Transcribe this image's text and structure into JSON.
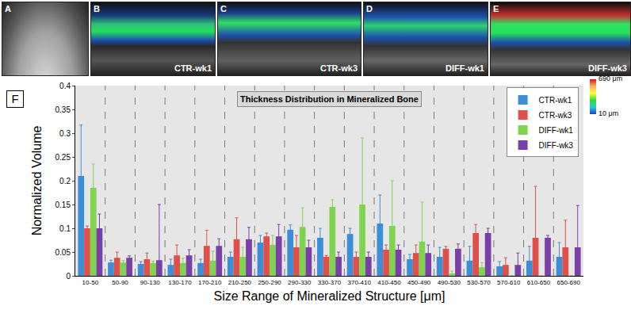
{
  "chart_data": {
    "type": "bar",
    "title": "Thickness Distribution in Mineralized Bone",
    "x_label": "Size Range of Mineralized Structure [μm]",
    "y_label": "Normalized Volume",
    "categories": [
      "10-50",
      "50-90",
      "90-130",
      "130-170",
      "170-210",
      "210-250",
      "250-290",
      "290-330",
      "330-370",
      "370-410",
      "410-450",
      "450-490",
      "490-530",
      "530-570",
      "570-610",
      "610-650",
      "650-690"
    ],
    "series": [
      {
        "name": "CTR-wk1",
        "color": "#3a8fd6",
        "values": [
          0.21,
          0.028,
          0.025,
          0.023,
          0.027,
          0.04,
          0.07,
          0.097,
          0.08,
          0.088,
          0.11,
          0.035,
          0.04,
          0.032,
          0.02,
          0.032,
          0.04
        ],
        "errors": [
          0.107,
          0.005,
          0.005,
          0.012,
          0.008,
          0.01,
          0.015,
          0.01,
          0.02,
          0.012,
          0.06,
          0.01,
          0.02,
          0.03,
          0.01,
          0.03,
          0.03
        ]
      },
      {
        "name": "CTR-wk3",
        "color": "#e0504a",
        "values": [
          0.1,
          0.038,
          0.035,
          0.043,
          0.063,
          0.077,
          0.083,
          0.06,
          0.04,
          0.04,
          0.055,
          0.048,
          0.057,
          0.09,
          0.023,
          0.08,
          0.06
        ],
        "errors": [
          0.005,
          0.012,
          0.013,
          0.022,
          0.033,
          0.045,
          0.007,
          0.025,
          0.003,
          0.01,
          0.01,
          0.017,
          0.005,
          0.018,
          0.015,
          0.108,
          0.057
        ]
      },
      {
        "name": "DIFF-wk1",
        "color": "#7fd44f",
        "values": [
          0.185,
          0.028,
          0.027,
          0.027,
          0.032,
          0.04,
          0.065,
          0.103,
          0.145,
          0.15,
          0.105,
          0.072,
          0.005,
          0.018,
          0.0,
          0.0,
          0.0
        ],
        "errors": [
          0.05,
          0.004,
          0.004,
          0.01,
          0.02,
          0.02,
          0.02,
          0.04,
          0.015,
          0.14,
          0.095,
          0.083,
          0.005,
          0.01,
          0.0,
          0.0,
          0.0
        ]
      },
      {
        "name": "DIFF-wk3",
        "color": "#7b3fa8",
        "values": [
          0.1,
          0.038,
          0.033,
          0.043,
          0.063,
          0.077,
          0.083,
          0.06,
          0.04,
          0.04,
          0.055,
          0.048,
          0.057,
          0.09,
          0.023,
          0.08,
          0.06
        ],
        "errors": [
          0.03,
          0.004,
          0.117,
          0.012,
          0.015,
          0.025,
          0.025,
          0.015,
          0.01,
          0.01,
          0.01,
          0.017,
          0.01,
          0.01,
          0.025,
          0.005,
          0.088
        ]
      }
    ],
    "ylim": [
      0,
      0.4
    ],
    "yticks": [
      0,
      0.05,
      0.1,
      0.15,
      0.2,
      0.25,
      0.3,
      0.35,
      0.4
    ],
    "grid": false,
    "legend": "upper right"
  },
  "figure_label": "F",
  "panels": [
    {
      "label": "A"
    },
    {
      "label": "B",
      "caption": "CTR-wk1"
    },
    {
      "label": "C",
      "caption": "CTR-wk3"
    },
    {
      "label": "D",
      "caption": "DIFF-wk1"
    },
    {
      "label": "E",
      "caption": "DIFF-wk3"
    }
  ],
  "color_bar": {
    "range": [
      10,
      690
    ],
    "ticks": [
      {
        "value": 690,
        "label": "690 μm"
      },
      {
        "value": 10,
        "label": "10 μm"
      }
    ]
  }
}
